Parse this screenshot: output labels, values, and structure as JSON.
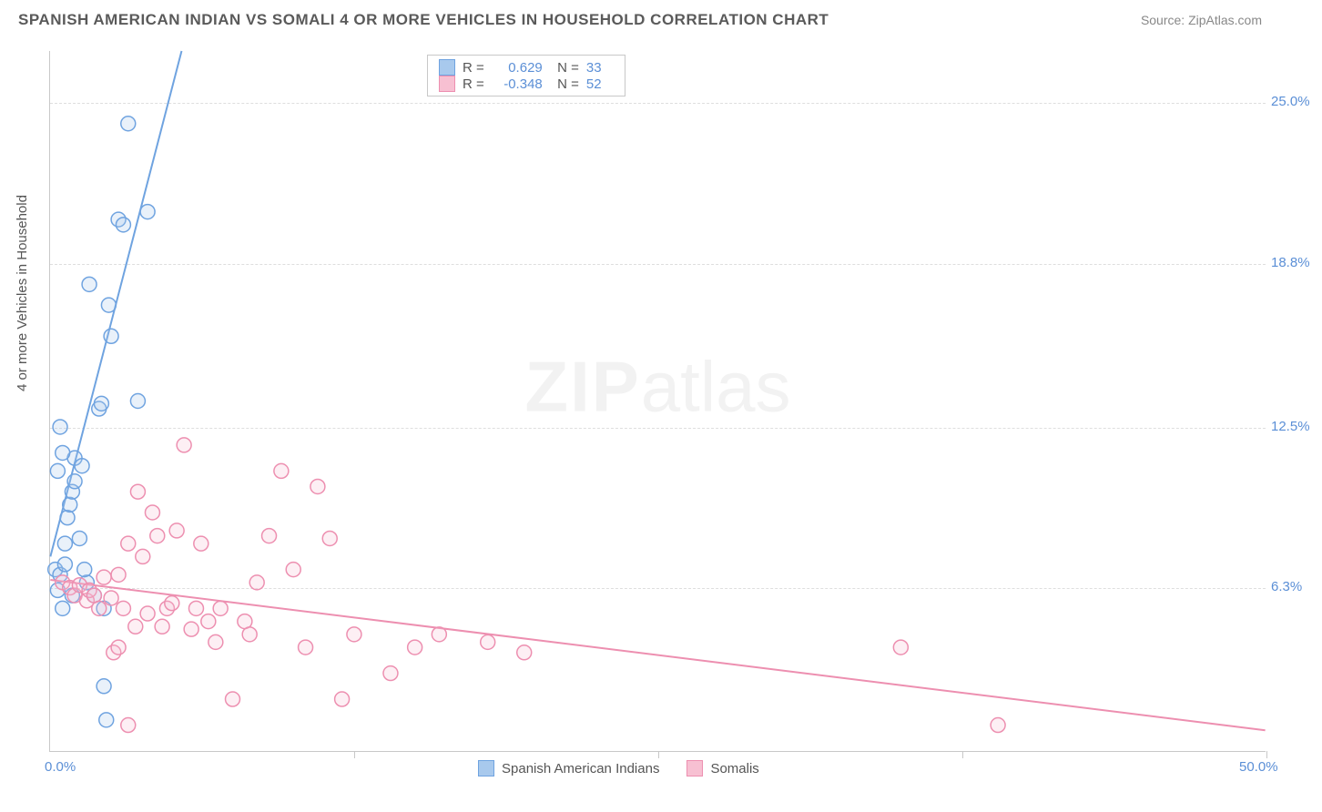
{
  "header": {
    "title": "SPANISH AMERICAN INDIAN VS SOMALI 4 OR MORE VEHICLES IN HOUSEHOLD CORRELATION CHART",
    "source": "Source: ZipAtlas.com"
  },
  "chart": {
    "type": "scatter",
    "ylabel": "4 or more Vehicles in Household",
    "xlim": [
      0,
      50
    ],
    "ylim": [
      0,
      27
    ],
    "y_gridlines": [
      6.3,
      12.5,
      18.8,
      25.0
    ],
    "y_tick_labels": [
      "6.3%",
      "12.5%",
      "18.8%",
      "25.0%"
    ],
    "x_ticks": [
      0,
      12.5,
      25,
      37.5,
      50
    ],
    "x_tick_labels": [
      "0.0%",
      "",
      "",
      "",
      "50.0%"
    ],
    "background_color": "#ffffff",
    "grid_color": "#dedede",
    "axis_color": "#c8c8c8",
    "axis_label_color": "#5b8fd6",
    "ylabel_color": "#555555",
    "marker_radius": 8,
    "marker_stroke_width": 1.5,
    "marker_fill_opacity": 0.25,
    "trend_line_width": 2,
    "series": [
      {
        "name": "Spanish American Indians",
        "color_stroke": "#6fa3e0",
        "color_fill": "#a8c9ed",
        "R": "0.629",
        "N": "33",
        "trend": {
          "x1": 0,
          "y1": 7.5,
          "x2": 5.4,
          "y2": 27.0
        },
        "points": [
          [
            0.2,
            7.0
          ],
          [
            0.3,
            6.2
          ],
          [
            0.4,
            6.8
          ],
          [
            0.5,
            5.5
          ],
          [
            0.6,
            7.2
          ],
          [
            0.6,
            8.0
          ],
          [
            0.7,
            9.0
          ],
          [
            0.8,
            9.5
          ],
          [
            0.9,
            10.0
          ],
          [
            1.0,
            10.4
          ],
          [
            1.0,
            11.3
          ],
          [
            1.3,
            11.0
          ],
          [
            1.2,
            8.2
          ],
          [
            1.5,
            6.5
          ],
          [
            1.6,
            18.0
          ],
          [
            2.0,
            13.2
          ],
          [
            2.1,
            13.4
          ],
          [
            2.2,
            5.5
          ],
          [
            2.2,
            2.5
          ],
          [
            2.3,
            1.2
          ],
          [
            2.4,
            17.2
          ],
          [
            2.5,
            16.0
          ],
          [
            2.8,
            20.5
          ],
          [
            3.0,
            20.3
          ],
          [
            3.2,
            24.2
          ],
          [
            3.6,
            13.5
          ],
          [
            4.0,
            20.8
          ],
          [
            0.4,
            12.5
          ],
          [
            0.3,
            10.8
          ],
          [
            0.5,
            11.5
          ],
          [
            1.8,
            6.0
          ],
          [
            1.4,
            7.0
          ],
          [
            0.9,
            6.0
          ]
        ]
      },
      {
        "name": "Somalis",
        "color_stroke": "#ed8fb0",
        "color_fill": "#f7c0d2",
        "R": "-0.348",
        "N": "52",
        "trend": {
          "x1": 0,
          "y1": 6.6,
          "x2": 50,
          "y2": 0.8
        },
        "points": [
          [
            0.5,
            6.5
          ],
          [
            0.8,
            6.3
          ],
          [
            1.0,
            6.0
          ],
          [
            1.2,
            6.4
          ],
          [
            1.5,
            5.8
          ],
          [
            1.6,
            6.2
          ],
          [
            1.8,
            6.0
          ],
          [
            2.0,
            5.5
          ],
          [
            2.2,
            6.7
          ],
          [
            2.5,
            5.9
          ],
          [
            2.6,
            3.8
          ],
          [
            2.8,
            4.0
          ],
          [
            3.0,
            5.5
          ],
          [
            3.2,
            8.0
          ],
          [
            3.5,
            4.8
          ],
          [
            3.6,
            10.0
          ],
          [
            3.8,
            7.5
          ],
          [
            4.0,
            5.3
          ],
          [
            4.2,
            9.2
          ],
          [
            4.4,
            8.3
          ],
          [
            4.6,
            4.8
          ],
          [
            4.8,
            5.5
          ],
          [
            5.0,
            5.7
          ],
          [
            5.2,
            8.5
          ],
          [
            5.5,
            11.8
          ],
          [
            5.8,
            4.7
          ],
          [
            6.0,
            5.5
          ],
          [
            6.2,
            8.0
          ],
          [
            6.5,
            5.0
          ],
          [
            6.8,
            4.2
          ],
          [
            7.0,
            5.5
          ],
          [
            7.5,
            2.0
          ],
          [
            8.0,
            5.0
          ],
          [
            8.2,
            4.5
          ],
          [
            8.5,
            6.5
          ],
          [
            9.0,
            8.3
          ],
          [
            9.5,
            10.8
          ],
          [
            10.0,
            7.0
          ],
          [
            10.5,
            4.0
          ],
          [
            11.0,
            10.2
          ],
          [
            11.5,
            8.2
          ],
          [
            12.0,
            2.0
          ],
          [
            12.5,
            4.5
          ],
          [
            14.0,
            3.0
          ],
          [
            15.0,
            4.0
          ],
          [
            16.0,
            4.5
          ],
          [
            18.0,
            4.2
          ],
          [
            19.5,
            3.8
          ],
          [
            3.2,
            1.0
          ],
          [
            35.0,
            4.0
          ],
          [
            39.0,
            1.0
          ],
          [
            2.8,
            6.8
          ]
        ]
      }
    ],
    "legend_bottom": [
      {
        "label": "Spanish American Indians",
        "stroke": "#6fa3e0",
        "fill": "#a8c9ed"
      },
      {
        "label": "Somalis",
        "stroke": "#ed8fb0",
        "fill": "#f7c0d2"
      }
    ],
    "watermark": {
      "part1": "ZIP",
      "part2": "atlas"
    }
  }
}
